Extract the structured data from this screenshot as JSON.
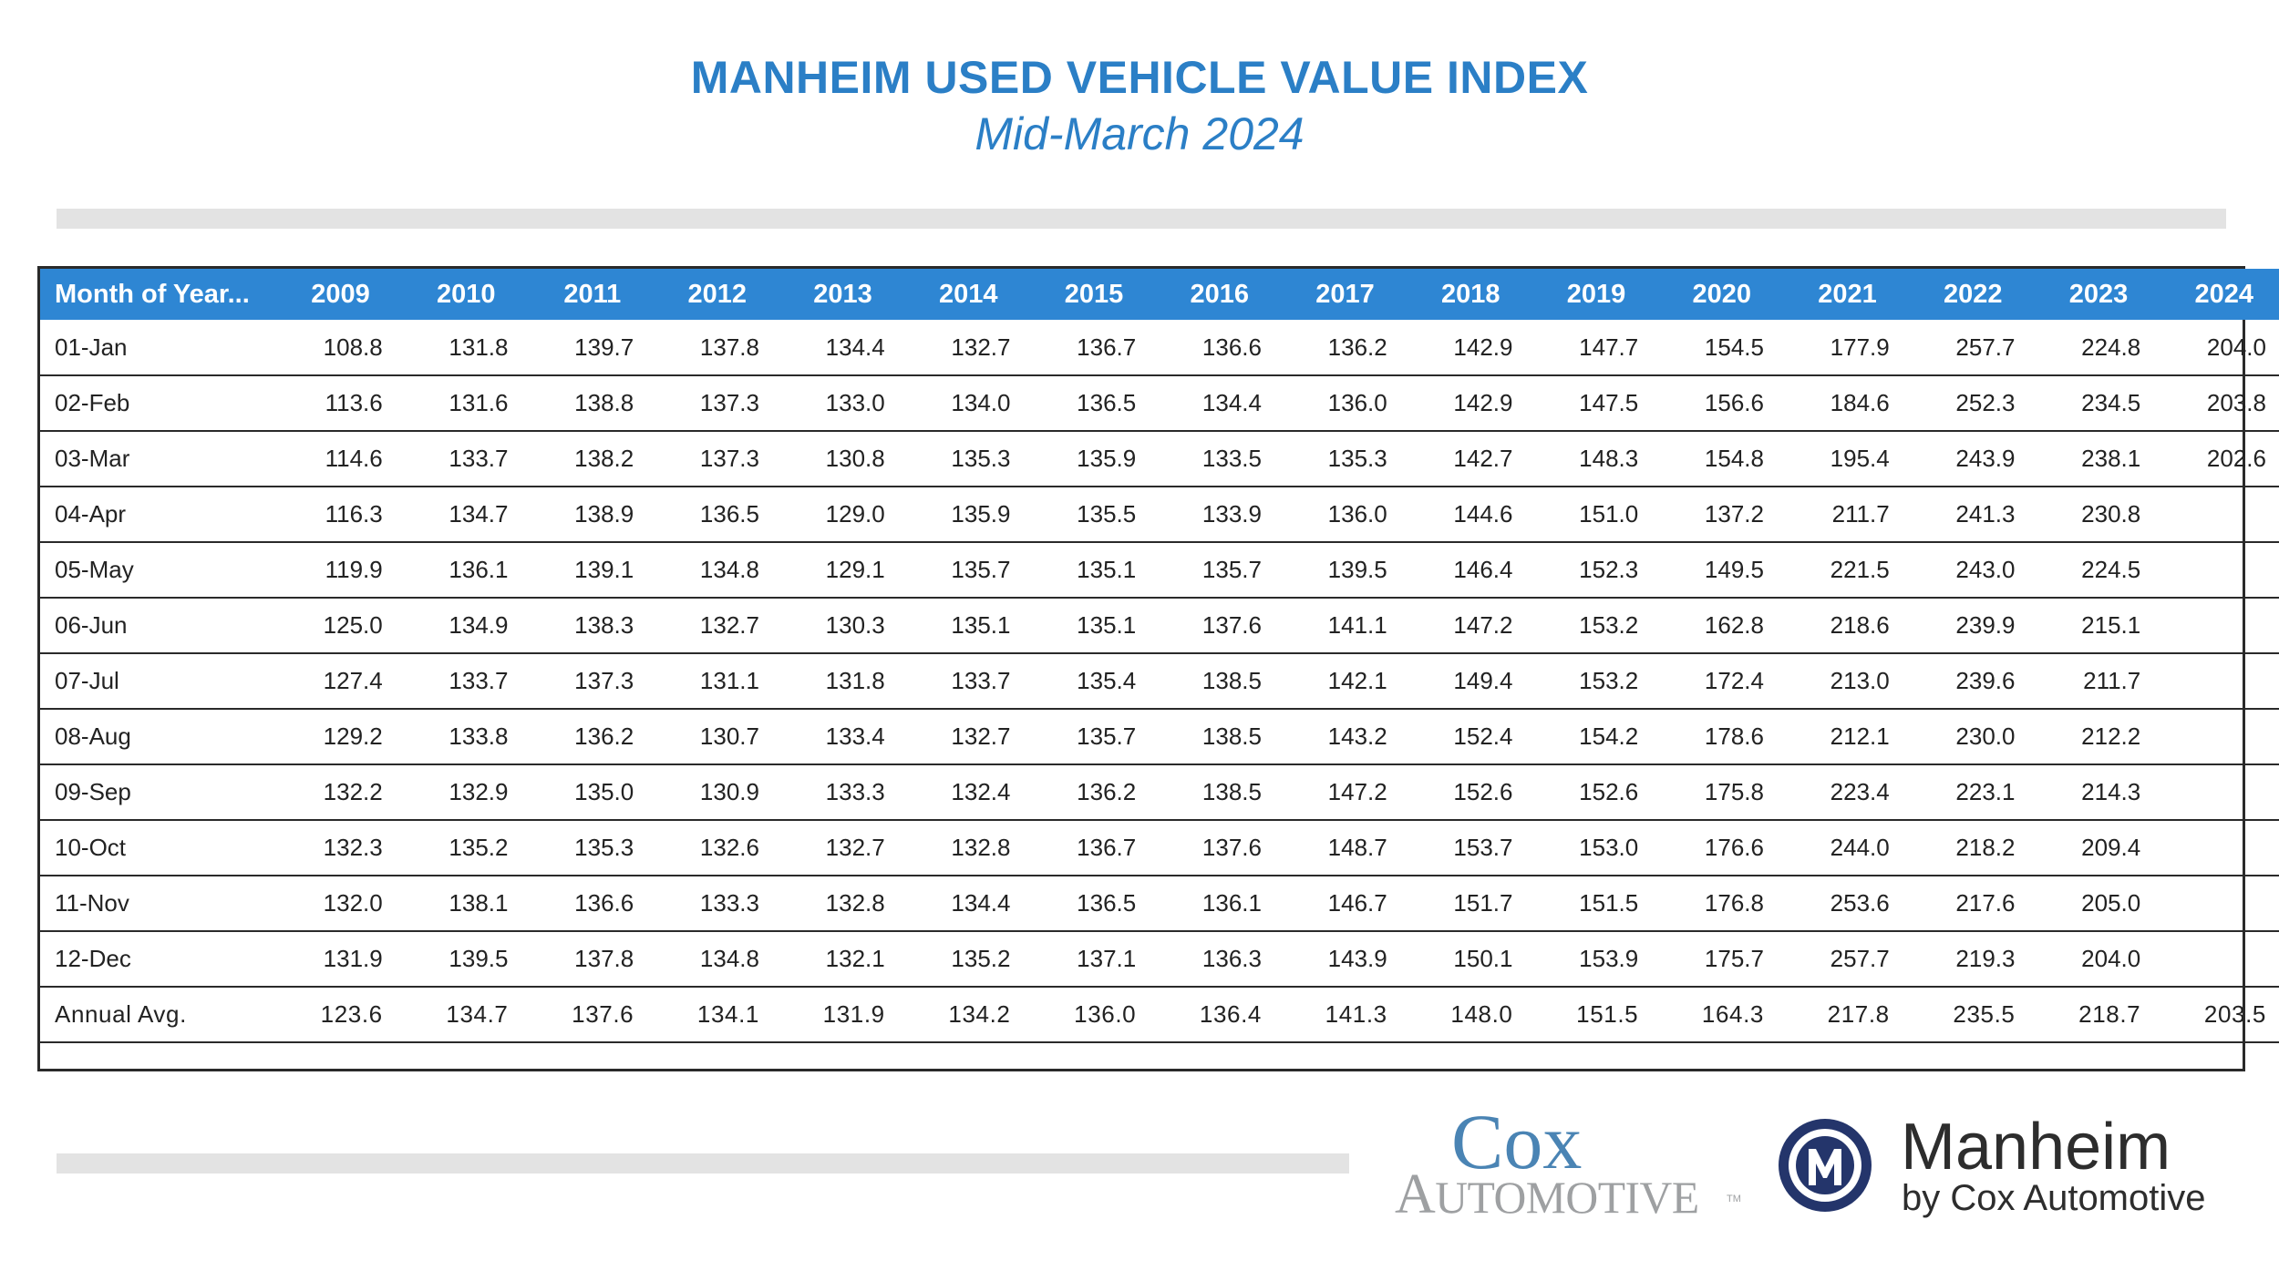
{
  "header": {
    "title": "MANHEIM USED VEHICLE VALUE INDEX",
    "subtitle": "Mid-March 2024"
  },
  "table": {
    "label_header": "Month of Year...",
    "years": [
      "2009",
      "2010",
      "2011",
      "2012",
      "2013",
      "2014",
      "2015",
      "2016",
      "2017",
      "2018",
      "2019",
      "2020",
      "2021",
      "2022",
      "2023",
      "2024"
    ],
    "rows": [
      {
        "label": "01-Jan",
        "values": [
          "108.8",
          "131.8",
          "139.7",
          "137.8",
          "134.4",
          "132.7",
          "136.7",
          "136.6",
          "136.2",
          "142.9",
          "147.7",
          "154.5",
          "177.9",
          "257.7",
          "224.8",
          "204.0"
        ]
      },
      {
        "label": "02-Feb",
        "values": [
          "113.6",
          "131.6",
          "138.8",
          "137.3",
          "133.0",
          "134.0",
          "136.5",
          "134.4",
          "136.0",
          "142.9",
          "147.5",
          "156.6",
          "184.6",
          "252.3",
          "234.5",
          "203.8"
        ]
      },
      {
        "label": "03-Mar",
        "values": [
          "114.6",
          "133.7",
          "138.2",
          "137.3",
          "130.8",
          "135.3",
          "135.9",
          "133.5",
          "135.3",
          "142.7",
          "148.3",
          "154.8",
          "195.4",
          "243.9",
          "238.1",
          "202.6"
        ]
      },
      {
        "label": "04-Apr",
        "values": [
          "116.3",
          "134.7",
          "138.9",
          "136.5",
          "129.0",
          "135.9",
          "135.5",
          "133.9",
          "136.0",
          "144.6",
          "151.0",
          "137.2",
          "211.7",
          "241.3",
          "230.8",
          ""
        ]
      },
      {
        "label": "05-May",
        "values": [
          "119.9",
          "136.1",
          "139.1",
          "134.8",
          "129.1",
          "135.7",
          "135.1",
          "135.7",
          "139.5",
          "146.4",
          "152.3",
          "149.5",
          "221.5",
          "243.0",
          "224.5",
          ""
        ]
      },
      {
        "label": "06-Jun",
        "values": [
          "125.0",
          "134.9",
          "138.3",
          "132.7",
          "130.3",
          "135.1",
          "135.1",
          "137.6",
          "141.1",
          "147.2",
          "153.2",
          "162.8",
          "218.6",
          "239.9",
          "215.1",
          ""
        ]
      },
      {
        "label": "07-Jul",
        "values": [
          "127.4",
          "133.7",
          "137.3",
          "131.1",
          "131.8",
          "133.7",
          "135.4",
          "138.5",
          "142.1",
          "149.4",
          "153.2",
          "172.4",
          "213.0",
          "239.6",
          "211.7",
          ""
        ]
      },
      {
        "label": "08-Aug",
        "values": [
          "129.2",
          "133.8",
          "136.2",
          "130.7",
          "133.4",
          "132.7",
          "135.7",
          "138.5",
          "143.2",
          "152.4",
          "154.2",
          "178.6",
          "212.1",
          "230.0",
          "212.2",
          ""
        ]
      },
      {
        "label": "09-Sep",
        "values": [
          "132.2",
          "132.9",
          "135.0",
          "130.9",
          "133.3",
          "132.4",
          "136.2",
          "138.5",
          "147.2",
          "152.6",
          "152.6",
          "175.8",
          "223.4",
          "223.1",
          "214.3",
          ""
        ]
      },
      {
        "label": "10-Oct",
        "values": [
          "132.3",
          "135.2",
          "135.3",
          "132.6",
          "132.7",
          "132.8",
          "136.7",
          "137.6",
          "148.7",
          "153.7",
          "153.0",
          "176.6",
          "244.0",
          "218.2",
          "209.4",
          ""
        ]
      },
      {
        "label": "11-Nov",
        "values": [
          "132.0",
          "138.1",
          "136.6",
          "133.3",
          "132.8",
          "134.4",
          "136.5",
          "136.1",
          "146.7",
          "151.7",
          "151.5",
          "176.8",
          "253.6",
          "217.6",
          "205.0",
          ""
        ]
      },
      {
        "label": "12-Dec",
        "values": [
          "131.9",
          "139.5",
          "137.8",
          "134.8",
          "132.1",
          "135.2",
          "137.1",
          "136.3",
          "143.9",
          "150.1",
          "153.9",
          "175.7",
          "257.7",
          "219.3",
          "204.0",
          ""
        ]
      },
      {
        "label": "Annual Avg.",
        "values": [
          "123.6",
          "134.7",
          "137.6",
          "134.1",
          "131.9",
          "134.2",
          "136.0",
          "136.4",
          "141.3",
          "148.0",
          "151.5",
          "164.3",
          "217.8",
          "235.5",
          "218.7",
          "203.5"
        ]
      },
      {
        "label": "",
        "values": [
          "",
          "",
          "",
          "",
          "",
          "",
          "",
          "",
          "",
          "",
          "",
          "",
          "",
          "",
          "",
          ""
        ]
      }
    ]
  },
  "footer": {
    "cox_logo": {
      "line1": "Cox",
      "line2": "Automotive",
      "tm": "TM"
    },
    "manheim_logo": {
      "name": "Manheim",
      "tagline": "by Cox Automotive",
      "mark_icon": "manheim-m-icon"
    }
  },
  "colors": {
    "accent": "#2b7fc6",
    "header_bar": "#2e86d3",
    "divider_bar": "#e3e3e3",
    "cox_blue": "#4a84b4",
    "automotive_gray": "#9ea0a2",
    "manheim_navy": "#24356b"
  }
}
